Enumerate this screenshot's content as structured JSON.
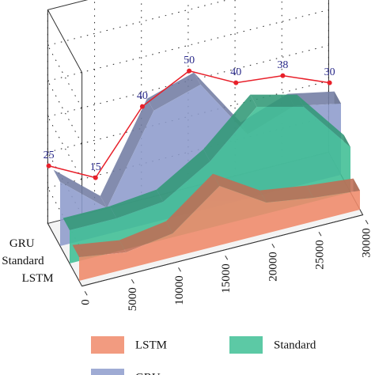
{
  "chart_data": {
    "type": "area3d",
    "x": [
      0,
      5000,
      10000,
      15000,
      20000,
      25000,
      30000
    ],
    "xlim": [
      0,
      30000
    ],
    "xticks": [
      0,
      5000,
      10000,
      15000,
      20000,
      25000,
      30000
    ],
    "ylim": [
      0,
      90
    ],
    "series": [
      {
        "name": "LSTM",
        "color": "#f08a6a",
        "values": [
          10,
          7,
          10,
          25,
          13,
          10,
          8
        ]
      },
      {
        "name": "Standard",
        "color": "#3fbf95",
        "values": [
          14,
          14,
          16,
          28,
          46,
          41,
          19
        ]
      },
      {
        "name": "GRU",
        "color": "#8e9ccc",
        "values": [
          27,
          11,
          47,
          53,
          27,
          34,
          30
        ]
      }
    ],
    "line": {
      "color": "#e8202a",
      "values": [
        25,
        15,
        40,
        50,
        40,
        38,
        30
      ]
    },
    "grid": true,
    "legend": "bottom"
  }
}
